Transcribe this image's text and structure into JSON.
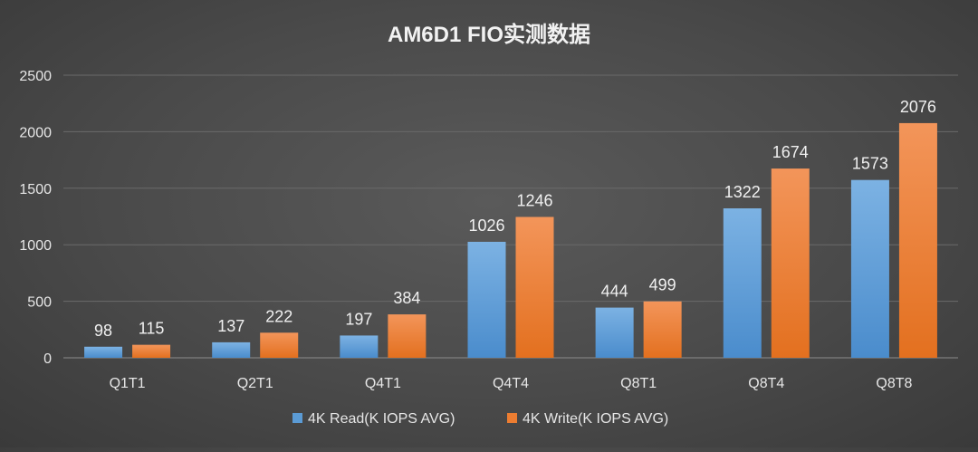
{
  "chart_data": {
    "type": "bar",
    "title": "AM6D1 FIO实测数据",
    "categories": [
      "Q1T1",
      "Q2T1",
      "Q4T1",
      "Q4T4",
      "Q8T1",
      "Q8T4",
      "Q8T8"
    ],
    "series": [
      {
        "name": "4K Read(K IOPS AVG)",
        "color": "#5b9bd5",
        "values": [
          98,
          137,
          197,
          1026,
          444,
          1322,
          1573
        ]
      },
      {
        "name": "4K Write(K IOPS AVG)",
        "color": "#ed7d31",
        "values": [
          115,
          222,
          384,
          1246,
          499,
          1674,
          2076
        ]
      }
    ],
    "ylim": [
      0,
      2500
    ],
    "yticks": [
      0,
      500,
      1000,
      1500,
      2000,
      2500
    ],
    "xlabel": "",
    "ylabel": "",
    "grid": true,
    "legend": "bottom",
    "data_labels": true
  }
}
